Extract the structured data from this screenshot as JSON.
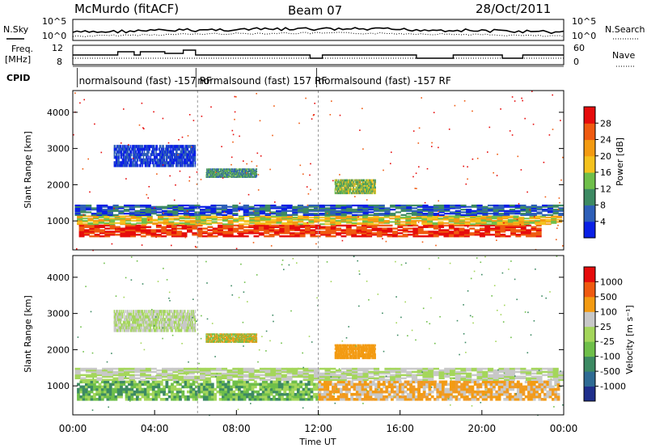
{
  "header": {
    "station": "McMurdo (fitACF)",
    "beam": "Beam 07",
    "date": "28/Oct/2011"
  },
  "sky_panel": {
    "left_label": "N.Sky",
    "right_label": "N.Search",
    "left_ticks": [
      "10^5",
      "10^0"
    ],
    "right_ticks": [
      "10^5",
      "10^0"
    ]
  },
  "freq_panel": {
    "left_label_line1": "Freq.",
    "left_label_line2": "[MHz]",
    "right_label": "Nave",
    "left_ticks": [
      "12",
      "8"
    ],
    "right_ticks": [
      "60",
      "0"
    ]
  },
  "cpid": {
    "label": "CPID",
    "segments": [
      {
        "start_hour": 0.3,
        "text": "normalsound (fast) -157 RF"
      },
      {
        "start_hour": 6.1,
        "text": "normalsound (fast) 157 RF"
      },
      {
        "start_hour": 12.0,
        "text": "normalsound (fast) -157 RF"
      }
    ]
  },
  "x_axis": {
    "label": "Time UT",
    "ticks": [
      "00:00",
      "04:00",
      "08:00",
      "12:00",
      "16:00",
      "20:00",
      "00:00"
    ]
  },
  "chart_data": [
    {
      "type": "heatmap",
      "panel": "power",
      "ylabel": "Slant Range [km]",
      "y_ticks": [
        1000,
        2000,
        3000,
        4000
      ],
      "ylim": [
        200,
        4600
      ],
      "xlim_hours": [
        0,
        24
      ],
      "colorbar": {
        "label": "Power [dB]",
        "ticks": [
          "4",
          "8",
          "12",
          "16",
          "20",
          "24",
          "28"
        ],
        "colors": [
          "#0a20e6",
          "#2e5fb8",
          "#3d8a63",
          "#6fbf4a",
          "#f4c21e",
          "#f39b12",
          "#ef5a10",
          "#e60c0c"
        ]
      },
      "bands": [
        {
          "range_km": [
            560,
            900
          ],
          "hours": [
            0.3,
            22.9
          ],
          "colors": [
            "#e60c0c",
            "#ef5a10"
          ]
        },
        {
          "range_km": [
            900,
            1150
          ],
          "hours": [
            0.2,
            23.9
          ],
          "colors": [
            "#f39b12",
            "#f4c21e",
            "#6fbf4a"
          ]
        },
        {
          "range_km": [
            1150,
            1450
          ],
          "hours": [
            0.1,
            24.0
          ],
          "colors": [
            "#3d8a63",
            "#2e5fb8",
            "#0a20e6"
          ]
        },
        {
          "range_km": [
            1750,
            2150
          ],
          "hours": [
            12.8,
            14.8
          ],
          "colors": [
            "#3d8a63",
            "#6fbf4a",
            "#f4c21e"
          ]
        },
        {
          "range_km": [
            2200,
            2450
          ],
          "hours": [
            6.5,
            9.0
          ],
          "colors": [
            "#3d8a63",
            "#6fbf4a",
            "#2e5fb8"
          ]
        },
        {
          "range_km": [
            2500,
            3100
          ],
          "hours": [
            2.0,
            6.0
          ],
          "colors": [
            "#2e5fb8",
            "#0a20e6"
          ]
        }
      ]
    },
    {
      "type": "heatmap",
      "panel": "velocity",
      "ylabel": "Slant Range [km]",
      "y_ticks": [
        1000,
        2000,
        3000,
        4000
      ],
      "ylim": [
        200,
        4600
      ],
      "xlim_hours": [
        0,
        24
      ],
      "colorbar": {
        "label": "Velocity [m s⁻¹]",
        "ticks": [
          "1000",
          "500",
          "100",
          "25",
          "-25",
          "-100",
          "-500",
          "-1000"
        ],
        "colors": [
          "#1f2f8c",
          "#2f6b94",
          "#3d8a63",
          "#6fbf4a",
          "#a4d65b",
          "#c8c8c8",
          "#f39b12",
          "#ef5a10",
          "#e60c0c"
        ]
      },
      "bands": [
        {
          "range_km": [
            600,
            1150
          ],
          "hours": [
            0.2,
            12.0
          ],
          "colors": [
            "#6fbf4a",
            "#3d8a63",
            "#a4d65b"
          ]
        },
        {
          "range_km": [
            600,
            1150
          ],
          "hours": [
            12.0,
            23.8
          ],
          "colors": [
            "#f39b12",
            "#ef9b2a",
            "#c8c8c8"
          ]
        },
        {
          "range_km": [
            1150,
            1500
          ],
          "hours": [
            0.1,
            24.0
          ],
          "colors": [
            "#c8c8c8",
            "#a4d65b"
          ]
        },
        {
          "range_km": [
            1750,
            2150
          ],
          "hours": [
            12.8,
            14.8
          ],
          "colors": [
            "#f39b12"
          ]
        },
        {
          "range_km": [
            2200,
            2450
          ],
          "hours": [
            6.5,
            9.0
          ],
          "colors": [
            "#6fbf4a",
            "#f39b12"
          ]
        },
        {
          "range_km": [
            2500,
            3100
          ],
          "hours": [
            2.0,
            6.0
          ],
          "colors": [
            "#c8c8c8",
            "#a4d65b"
          ]
        }
      ]
    }
  ]
}
